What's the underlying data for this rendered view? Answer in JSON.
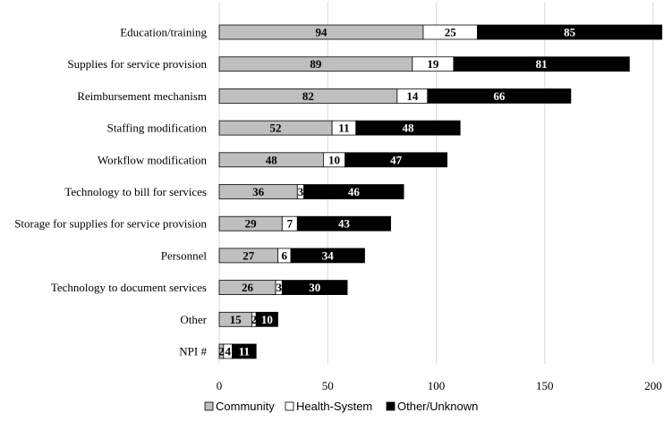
{
  "chart_data": {
    "type": "bar",
    "orientation": "horizontal",
    "stacked": true,
    "title": "",
    "xlabel": "",
    "ylabel": "",
    "xlim": [
      0,
      200
    ],
    "xticks": [
      0,
      50,
      100,
      150,
      200
    ],
    "grid": true,
    "legend_position": "bottom",
    "categories": [
      "Education/training",
      "Supplies for service provision",
      "Reimbursement mechanism",
      "Staffing modification",
      "Workflow modification",
      "Technology to bill for services",
      "Storage for supplies for service provision",
      "Personnel",
      "Technology to document services",
      "Other",
      "NPI #"
    ],
    "series": [
      {
        "name": "Community",
        "color": "#bfbfbf",
        "label_color": "#000000",
        "values": [
          94,
          89,
          82,
          52,
          48,
          36,
          29,
          27,
          26,
          15,
          2
        ]
      },
      {
        "name": "Health-System",
        "color": "#ffffff",
        "label_color": "#000000",
        "values": [
          25,
          19,
          14,
          11,
          10,
          3,
          7,
          6,
          3,
          2,
          4
        ]
      },
      {
        "name": "Other/Unknown",
        "color": "#000000",
        "label_color": "#ffffff",
        "values": [
          85,
          81,
          66,
          48,
          47,
          46,
          43,
          34,
          30,
          10,
          11
        ]
      }
    ]
  }
}
